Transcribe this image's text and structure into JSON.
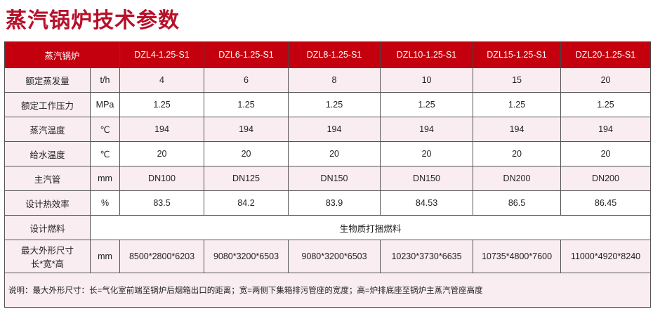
{
  "title": "蒸汽锅炉技术参数",
  "header": {
    "label": "蒸汽锅炉",
    "models": [
      "DZL4-1.25-S1",
      "DZL6-1.25-S1",
      "DZL8-1.25-S1",
      "DZL10-1.25-S1",
      "DZL15-1.25-S1",
      "DZL20-1.25-S1"
    ]
  },
  "rows": [
    {
      "label": "额定蒸发量",
      "unit": "t/h",
      "values": [
        "4",
        "6",
        "8",
        "10",
        "15",
        "20"
      ]
    },
    {
      "label": "额定工作压力",
      "unit": "MPa",
      "values": [
        "1.25",
        "1.25",
        "1.25",
        "1.25",
        "1.25",
        "1.25"
      ]
    },
    {
      "label": "蒸汽温度",
      "unit": "℃",
      "values": [
        "194",
        "194",
        "194",
        "194",
        "194",
        "194"
      ]
    },
    {
      "label": "给水温度",
      "unit": "℃",
      "values": [
        "20",
        "20",
        "20",
        "20",
        "20",
        "20"
      ]
    },
    {
      "label": "主汽管",
      "unit": "mm",
      "values": [
        "DN100",
        "DN125",
        "DN150",
        "DN150",
        "DN200",
        "DN200"
      ]
    },
    {
      "label": "设计热效率",
      "unit": "%",
      "values": [
        "83.5",
        "84.2",
        "83.9",
        "84.53",
        "86.5",
        "86.45"
      ]
    }
  ],
  "fuel": {
    "label": "设计燃料",
    "value": "生物质打捆燃料"
  },
  "dimensions": {
    "label_line1": "最大外形尺寸",
    "label_line2": "长*宽*高",
    "unit": "mm",
    "values": [
      "8500*2800*6203",
      "9080*3200*6503",
      "9080*3200*6503",
      "10230*3730*6635",
      "10735*4800*7600",
      "11000*4920*8240"
    ]
  },
  "note": "说明：最大外形尺寸：长=气化室前端至锅炉后烟箱出口的距离；宽=两侧下集箱排污管座的宽度；高=炉排底座至锅炉主蒸汽管座高度",
  "colors": {
    "header_bg": "#c4000f",
    "title": "#b8102a",
    "row_pink": "#faedf1"
  }
}
